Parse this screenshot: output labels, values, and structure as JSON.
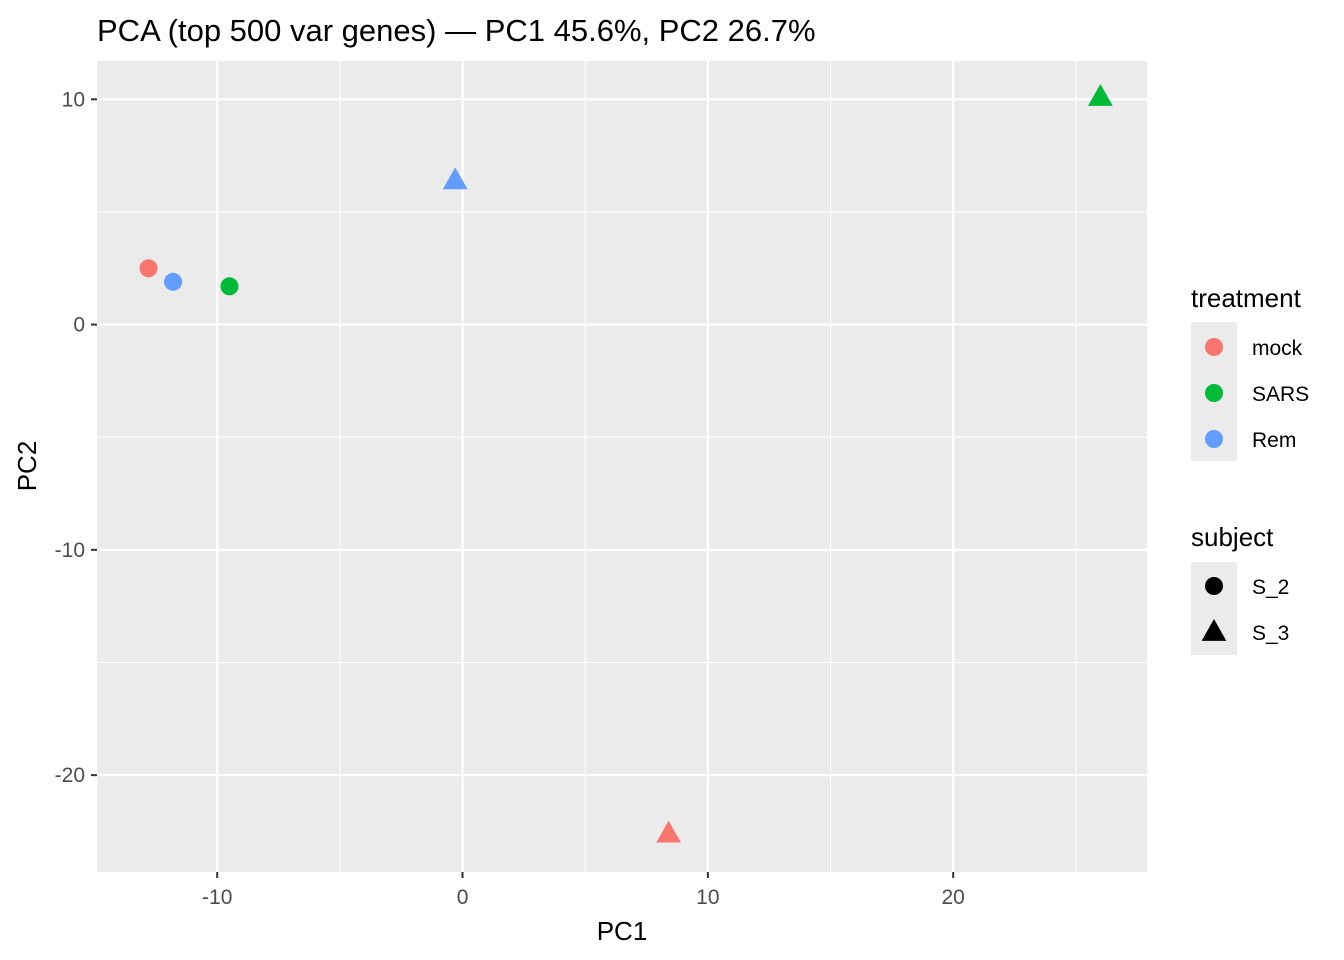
{
  "chart_data": {
    "type": "scatter",
    "title": "PCA (top 500 var genes) — PC1 45.6%, PC2 26.7%",
    "xlabel": "PC1",
    "ylabel": "PC2",
    "xlim": [
      -14.9,
      27.9
    ],
    "ylim": [
      -24.3,
      11.7
    ],
    "x_ticks": [
      -10,
      0,
      10,
      20
    ],
    "y_ticks": [
      -20,
      -10,
      0,
      10
    ],
    "x_tick_labels": [
      "-10",
      "0",
      "10",
      "20"
    ],
    "y_tick_labels": [
      "-20",
      "-10",
      "0",
      "10"
    ],
    "grid": true,
    "panel_background": "#EBEBEB",
    "grid_color": "#FFFFFF",
    "legend_position": "right",
    "points": [
      {
        "x": -12.8,
        "y": 2.5,
        "treatment": "mock",
        "subject": "S_2"
      },
      {
        "x": -11.8,
        "y": 1.9,
        "treatment": "Rem",
        "subject": "S_2"
      },
      {
        "x": -9.5,
        "y": 1.7,
        "treatment": "SARS",
        "subject": "S_2"
      },
      {
        "x": -0.3,
        "y": 6.4,
        "treatment": "Rem",
        "subject": "S_3"
      },
      {
        "x": 26.0,
        "y": 10.1,
        "treatment": "SARS",
        "subject": "S_3"
      },
      {
        "x": 8.4,
        "y": -22.6,
        "treatment": "mock",
        "subject": "S_3"
      }
    ],
    "legend_color": {
      "title": "treatment",
      "items": [
        {
          "label": "mock",
          "color": "#F8766D"
        },
        {
          "label": "SARS",
          "color": "#00BA38"
        },
        {
          "label": "Rem",
          "color": "#619CFF"
        }
      ]
    },
    "legend_shape": {
      "title": "subject",
      "items": [
        {
          "label": "S_2",
          "shape": "circle"
        },
        {
          "label": "S_3",
          "shape": "triangle"
        }
      ]
    }
  }
}
